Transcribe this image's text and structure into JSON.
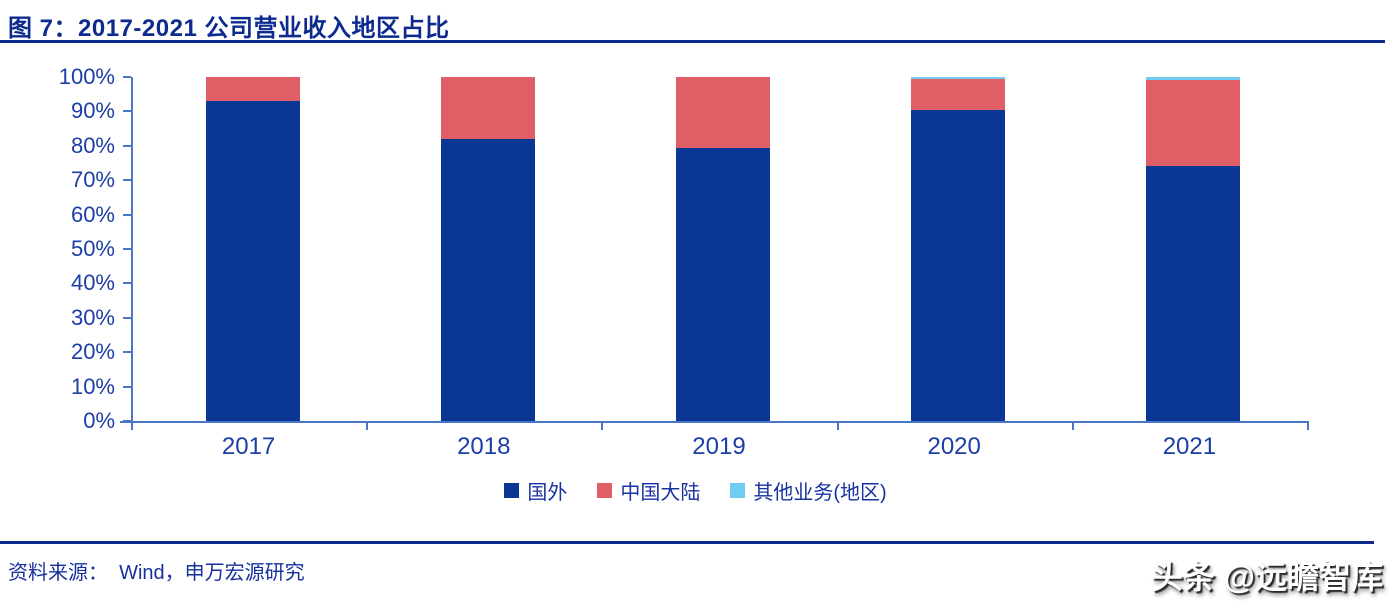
{
  "title": "图 7：2017-2021 公司营业收入地区占比",
  "footer": {
    "source": "资料来源：  Wind，申万宏源研究"
  },
  "watermark": "头条 @远瞻智库",
  "colors": {
    "title_text": "#0d2b8e",
    "rule": "#0d2b8e",
    "axis": "#4a76c8",
    "tick_label": "#1c3ea6",
    "legend_text": "#1733a0",
    "watermark_text": "#ffffff",
    "series_blue": "#0a3694",
    "series_red": "#e05f66",
    "series_cyan": "#6fcdf2"
  },
  "chart_data": {
    "type": "bar",
    "stacked": true,
    "title": "2017-2021 公司营业收入地区占比",
    "categories": [
      "2017",
      "2018",
      "2019",
      "2020",
      "2021"
    ],
    "series": [
      {
        "name": "国外",
        "color": "#0a3694",
        "values": [
          93,
          82,
          79.5,
          90.3,
          74
        ]
      },
      {
        "name": "中国大陆",
        "color": "#e05f66",
        "values": [
          7,
          18,
          20.5,
          9.2,
          25
        ]
      },
      {
        "name": "其他业务(地区)",
        "color": "#6fcdf2",
        "values": [
          0,
          0,
          0,
          0.5,
          1
        ]
      }
    ],
    "xlabel": "",
    "ylabel": "",
    "ylim": [
      0,
      100
    ],
    "ytick_step": 10,
    "ytick_labels": [
      "0%",
      "10%",
      "20%",
      "30%",
      "40%",
      "50%",
      "60%",
      "70%",
      "80%",
      "90%",
      "100%"
    ],
    "grid": false,
    "legend_position": "bottom"
  }
}
